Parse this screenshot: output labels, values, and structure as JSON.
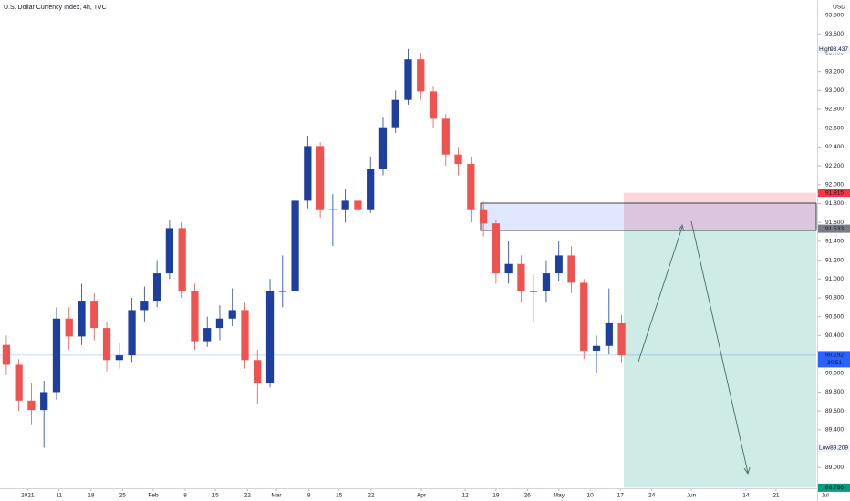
{
  "chart_data": {
    "type": "candlestick",
    "title": "U.S. Dollar Currency Index, 4h, TVC",
    "currency": "USD",
    "up_color": "#1e3f9e",
    "down_color": "#ef5350",
    "xlim": [
      0,
      130
    ],
    "ylim": [
      88.78,
      93.96
    ],
    "yticks": [
      {
        "value": 89,
        "label": "89.000"
      },
      {
        "value": 89.2,
        "label": "89.200"
      },
      {
        "value": 89.4,
        "label": "89.400"
      },
      {
        "value": 89.6,
        "label": "89.600"
      },
      {
        "value": 89.8,
        "label": "89.800"
      },
      {
        "value": 90,
        "label": "90.000"
      },
      {
        "value": 90.2,
        "label": "90.200"
      },
      {
        "value": 90.4,
        "label": "90.400"
      },
      {
        "value": 90.6,
        "label": "90.600"
      },
      {
        "value": 90.8,
        "label": "90.800"
      },
      {
        "value": 91,
        "label": "91.000"
      },
      {
        "value": 91.2,
        "label": "91.200"
      },
      {
        "value": 91.4,
        "label": "91.400"
      },
      {
        "value": 91.6,
        "label": "91.600"
      },
      {
        "value": 91.8,
        "label": "91.800"
      },
      {
        "value": 92,
        "label": "92.000"
      },
      {
        "value": 92.2,
        "label": "92.200"
      },
      {
        "value": 92.4,
        "label": "92.400"
      },
      {
        "value": 92.6,
        "label": "92.600"
      },
      {
        "value": 92.8,
        "label": "92.800"
      },
      {
        "value": 93,
        "label": "93.000"
      },
      {
        "value": 93.2,
        "label": "93.200"
      },
      {
        "value": 93.4,
        "label": "93.400"
      },
      {
        "value": 93.6,
        "label": "93.600"
      },
      {
        "value": 93.8,
        "label": "93.800"
      }
    ],
    "xticks": [
      {
        "value": 4.4,
        "label": "2021"
      },
      {
        "value": 9.4,
        "label": "11"
      },
      {
        "value": 14.5,
        "label": "18"
      },
      {
        "value": 19.5,
        "label": "25"
      },
      {
        "value": 24.4,
        "label": "Feb"
      },
      {
        "value": 29.5,
        "label": "8"
      },
      {
        "value": 34.3,
        "label": "15"
      },
      {
        "value": 39.4,
        "label": "22"
      },
      {
        "value": 44,
        "label": "Mar"
      },
      {
        "value": 49.2,
        "label": "8"
      },
      {
        "value": 54,
        "label": "15"
      },
      {
        "value": 59.1,
        "label": "22"
      },
      {
        "value": 67.1,
        "label": "Apr"
      },
      {
        "value": 74.1,
        "label": "12"
      },
      {
        "value": 79,
        "label": "19"
      },
      {
        "value": 84,
        "label": "26"
      },
      {
        "value": 89,
        "label": "May"
      },
      {
        "value": 94,
        "label": "10"
      },
      {
        "value": 98.8,
        "label": "17"
      },
      {
        "value": 103.8,
        "label": "24"
      },
      {
        "value": 110.1,
        "label": "Jun"
      },
      {
        "value": 118.8,
        "label": "14"
      },
      {
        "value": 123.6,
        "label": "21"
      },
      {
        "value": 131.4,
        "label": "Jul"
      }
    ],
    "x": [
      1,
      3,
      5,
      7,
      9,
      11,
      13,
      15,
      17,
      19,
      21,
      23,
      25,
      27,
      29,
      31,
      33,
      35,
      37,
      39,
      41,
      43,
      45,
      47,
      49,
      51,
      53,
      55,
      57,
      59,
      61,
      63,
      65,
      67,
      69,
      71,
      73,
      75,
      77,
      79,
      81,
      83,
      85,
      87,
      89,
      91,
      93,
      95,
      97,
      99
    ],
    "open": [
      90.3,
      90.09,
      89.71,
      89.61,
      89.8,
      90.58,
      90.39,
      90.77,
      90.48,
      90.14,
      90.19,
      90.67,
      90.77,
      91.06,
      91.54,
      90.87,
      90.34,
      90.48,
      90.58,
      90.67,
      90.14,
      89.9,
      90.87,
      90.87,
      91.83,
      92.41,
      91.74,
      91.74,
      91.83,
      91.74,
      92.17,
      92.61,
      92.9,
      93.33,
      92.99,
      92.7,
      92.32,
      92.22,
      91.74,
      91.59,
      91.06,
      91.16,
      90.87,
      90.87,
      91.06,
      91.25,
      90.96,
      90.24,
      90.29,
      90.53
    ],
    "high": [
      90.4,
      90.15,
      89.9,
      89.92,
      90.7,
      90.7,
      90.95,
      90.85,
      90.55,
      90.32,
      90.8,
      90.92,
      91.2,
      91.62,
      91.6,
      90.95,
      90.6,
      90.72,
      90.9,
      90.75,
      90.25,
      91.0,
      91.25,
      91.95,
      92.52,
      92.45,
      91.9,
      91.95,
      91.92,
      92.3,
      92.72,
      93.0,
      93.44,
      93.4,
      93.05,
      92.75,
      92.4,
      92.3,
      91.82,
      91.62,
      91.4,
      91.25,
      91.05,
      91.2,
      91.4,
      91.35,
      91.0,
      90.4,
      90.9,
      90.62
    ],
    "low": [
      89.98,
      89.6,
      89.45,
      89.21,
      89.72,
      90.25,
      90.3,
      90.35,
      90.02,
      90.05,
      90.12,
      90.55,
      90.7,
      91.0,
      90.8,
      90.25,
      90.28,
      90.35,
      90.5,
      90.05,
      89.68,
      89.85,
      90.7,
      90.8,
      91.75,
      91.65,
      91.35,
      91.6,
      91.4,
      91.7,
      92.1,
      92.55,
      92.85,
      92.9,
      92.6,
      92.2,
      92.1,
      91.6,
      91.45,
      90.95,
      90.95,
      90.75,
      90.55,
      90.75,
      90.98,
      90.85,
      90.15,
      90.0,
      90.2,
      90.12
    ],
    "close": [
      90.09,
      89.71,
      89.61,
      89.8,
      90.58,
      90.39,
      90.77,
      90.48,
      90.14,
      90.19,
      90.67,
      90.77,
      91.06,
      91.54,
      90.87,
      90.34,
      90.48,
      90.58,
      90.67,
      90.14,
      89.9,
      90.87,
      90.87,
      91.83,
      92.41,
      91.74,
      91.74,
      91.83,
      91.74,
      92.17,
      92.61,
      92.9,
      93.33,
      92.99,
      92.7,
      92.32,
      92.22,
      91.74,
      91.59,
      91.06,
      91.16,
      90.87,
      90.87,
      91.06,
      91.25,
      90.96,
      90.24,
      90.29,
      90.53,
      90.19
    ],
    "high_tag": {
      "label": "High",
      "value": 93.437
    },
    "low_tag": {
      "label": "Low",
      "value": 89.209
    },
    "last": {
      "value": 90.192,
      "countdown": "30:51",
      "color": "#2962ff"
    },
    "position": {
      "stop": 91.915,
      "entry": 91.533,
      "target": 88.786,
      "stop_color": "#f23645",
      "entry_color": "#787b86",
      "target_color": "#089981"
    }
  }
}
